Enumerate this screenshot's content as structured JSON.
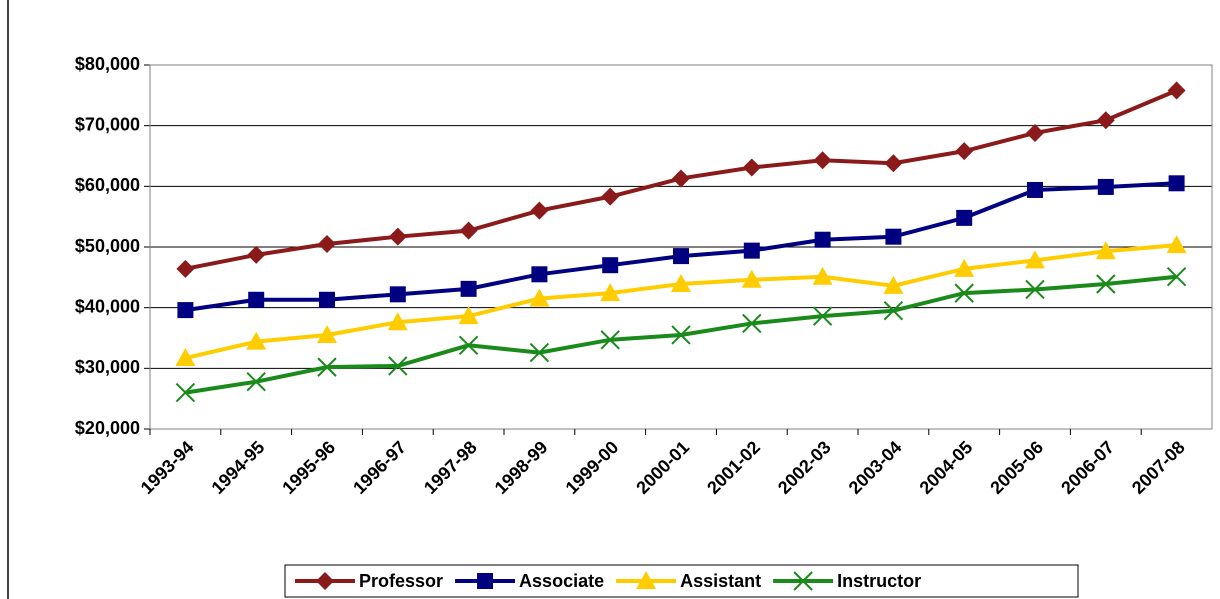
{
  "chart_data": {
    "type": "line",
    "categories": [
      "1993-94",
      "1994-95",
      "1995-96",
      "1996-97",
      "1997-98",
      "1998-99",
      "1999-00",
      "2000-01",
      "2001-02",
      "2002-03",
      "2003-04",
      "2004-05",
      "2005-06",
      "2006-07",
      "2007-08"
    ],
    "series": [
      {
        "name": "Professor",
        "color": "#8b1a1a",
        "marker": "diamond",
        "values": [
          46400,
          48700,
          50500,
          51700,
          52700,
          56000,
          58300,
          61300,
          63100,
          64300,
          63800,
          65800,
          68800,
          70900,
          75800
        ]
      },
      {
        "name": "Associate",
        "color": "#000080",
        "marker": "square",
        "values": [
          39600,
          41300,
          41300,
          42200,
          43100,
          45500,
          47000,
          48500,
          49400,
          51200,
          51700,
          54800,
          59400,
          59900,
          60500
        ]
      },
      {
        "name": "Assistant",
        "color": "#ffcc00",
        "marker": "triangle",
        "values": [
          31700,
          34400,
          35500,
          37600,
          38600,
          41500,
          42400,
          43900,
          44600,
          45100,
          43600,
          46400,
          47800,
          49300,
          50300
        ]
      },
      {
        "name": "Instructor",
        "color": "#1a8a1a",
        "marker": "x",
        "values": [
          26000,
          27800,
          30200,
          30400,
          33800,
          32600,
          34700,
          35500,
          37400,
          38600,
          39500,
          42400,
          43000,
          43900,
          45100
        ]
      }
    ],
    "ylim": [
      20000,
      80000
    ],
    "yticks": [
      {
        "value": 20000,
        "label": "$20,000"
      },
      {
        "value": 30000,
        "label": "$30,000"
      },
      {
        "value": 40000,
        "label": "$40,000"
      },
      {
        "value": 50000,
        "label": "$50,000"
      },
      {
        "value": 60000,
        "label": "$60,000"
      },
      {
        "value": 70000,
        "label": "$70,000"
      },
      {
        "value": 80000,
        "label": "$80,000"
      }
    ],
    "grid": true,
    "legend": "bottom"
  }
}
